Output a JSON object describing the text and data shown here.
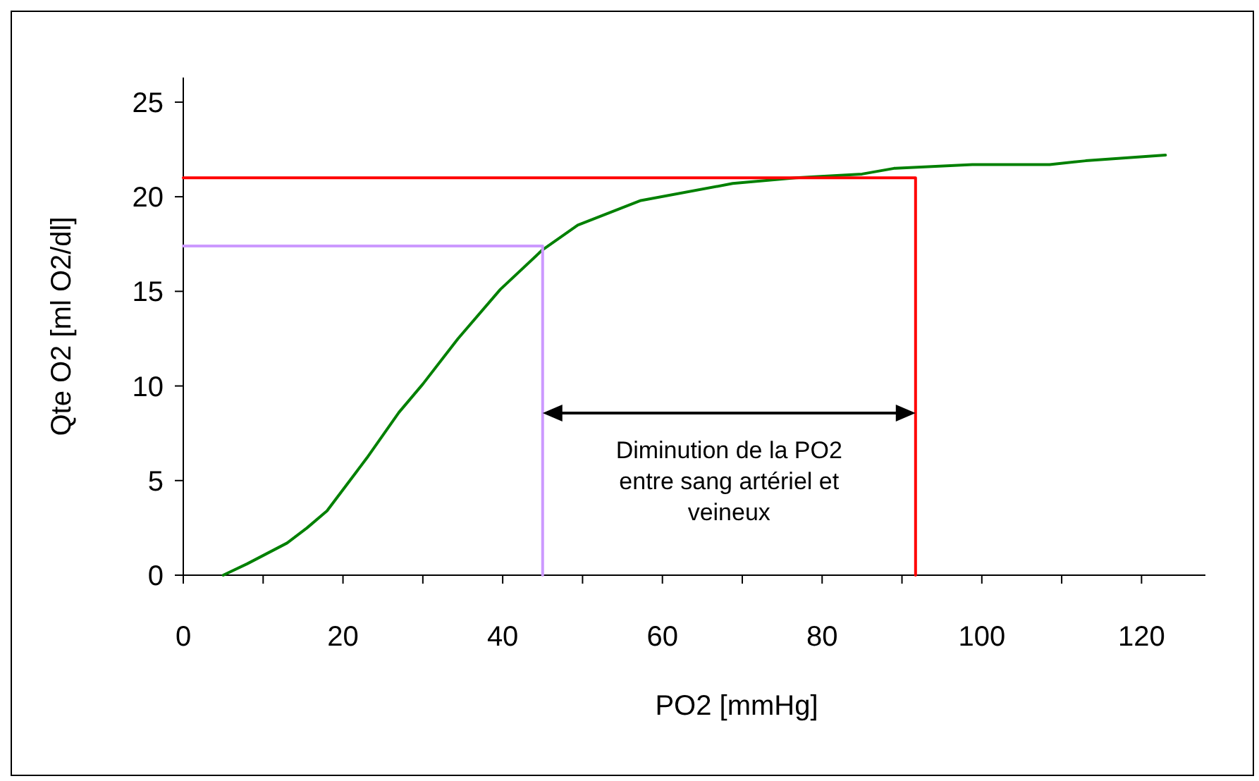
{
  "chart_data": {
    "type": "line",
    "xlabel": "PO2 [mmHg]",
    "ylabel": "Qte O2 [ml O2/dl]",
    "xlim": [
      0,
      128
    ],
    "ylim": [
      0,
      26.3
    ],
    "xticks": [
      0,
      {
        "value": 10,
        "label": null
      },
      20,
      {
        "value": 30,
        "label": null
      },
      40,
      {
        "value": 50,
        "label": null
      },
      60,
      {
        "value": 70,
        "label": null
      },
      80,
      {
        "value": 90,
        "label": null
      },
      100,
      {
        "value": 110,
        "label": null
      },
      120
    ],
    "yticks": [
      0,
      5,
      10,
      15,
      20,
      25
    ],
    "grid": false,
    "marker": "none",
    "line_style": "solid",
    "series": [
      {
        "color": "#008000",
        "x": [
          5,
          8,
          13,
          15.5,
          18,
          23,
          27,
          30,
          34.4,
          39.7,
          45,
          49.4,
          57.3,
          68.8,
          76.7,
          85,
          89,
          98.8,
          108.5,
          113,
          123
        ],
        "values": [
          0,
          0.6,
          1.7,
          2.5,
          3.4,
          6.2,
          8.6,
          10.1,
          12.5,
          15.1,
          17.2,
          18.5,
          19.8,
          20.7,
          21.0,
          21.2,
          21.5,
          21.7,
          21.7,
          21.9,
          22.2
        ]
      },
      {
        "color": "#cc99ff",
        "x": [
          0,
          45,
          45
        ],
        "values": [
          17.4,
          17.4,
          0
        ]
      },
      {
        "color": "#ff0000",
        "x": [
          0,
          91.7,
          91.7
        ],
        "values": [
          21,
          21,
          0
        ]
      }
    ],
    "annotations": [
      "Diminution de la PO2 entre sang artériel et veineux"
    ]
  }
}
